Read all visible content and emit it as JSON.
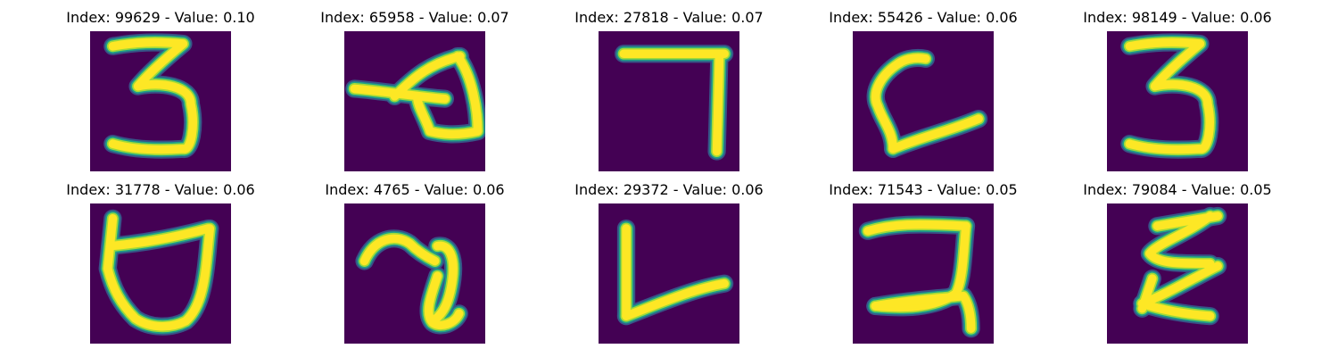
{
  "colors": {
    "background": "#440154",
    "stroke_core": "#fde725",
    "stroke_mid": "#a0da39",
    "stroke_edge": "#1fa187",
    "stroke_outer": "#365c8d"
  },
  "tiles": [
    {
      "title": "Index: 99629 - Value: 0.10",
      "glyph": "digit-3"
    },
    {
      "title": "Index: 65958 - Value: 0.07",
      "glyph": "loop-stroke"
    },
    {
      "title": "Index: 27818 - Value: 0.07",
      "glyph": "digit-7"
    },
    {
      "title": "Index: 55426 - Value: 0.06",
      "glyph": "c-shape"
    },
    {
      "title": "Index: 98149 - Value: 0.06",
      "glyph": "digit-3"
    },
    {
      "title": "Index: 31778 - Value: 0.06",
      "glyph": "bowl-shape"
    },
    {
      "title": "Index: 4765 - Value: 0.06",
      "glyph": "hook-shape"
    },
    {
      "title": "Index: 29372 - Value: 0.06",
      "glyph": "letter-l"
    },
    {
      "title": "Index: 71543 - Value: 0.05",
      "glyph": "digit-2"
    },
    {
      "title": "Index: 79084 - Value: 0.05",
      "glyph": "zigzag-e"
    }
  ]
}
